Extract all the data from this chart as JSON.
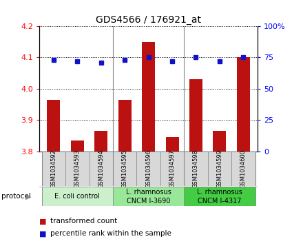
{
  "title": "GDS4566 / 176921_at",
  "samples": [
    "GSM1034592",
    "GSM1034593",
    "GSM1034594",
    "GSM1034595",
    "GSM1034596",
    "GSM1034597",
    "GSM1034598",
    "GSM1034599",
    "GSM1034600"
  ],
  "transformed_count": [
    3.965,
    3.835,
    3.865,
    3.965,
    4.15,
    3.845,
    4.03,
    3.865,
    4.1
  ],
  "percentile_rank": [
    73,
    72,
    71,
    73,
    75,
    72,
    75,
    72,
    75
  ],
  "ylim_left": [
    3.8,
    4.2
  ],
  "ylim_right": [
    0,
    100
  ],
  "yticks_left": [
    3.8,
    3.9,
    4.0,
    4.1,
    4.2
  ],
  "yticks_right": [
    0,
    25,
    50,
    75,
    100
  ],
  "bar_color": "#bb1111",
  "dot_color": "#1111cc",
  "sample_box_color": "#d8d8d8",
  "protocol_groups": [
    {
      "label": "E. coli control",
      "start": 0,
      "end": 3,
      "color": "#ccf0cc"
    },
    {
      "label": "L. rhamnosus\nCNCM I-3690",
      "start": 3,
      "end": 6,
      "color": "#99e899"
    },
    {
      "label": "L. rhamnosus\nCNCM I-4317",
      "start": 6,
      "end": 9,
      "color": "#44cc44"
    }
  ],
  "legend_bar_label": "transformed count",
  "legend_dot_label": "percentile rank within the sample",
  "protocol_label": "protocol"
}
